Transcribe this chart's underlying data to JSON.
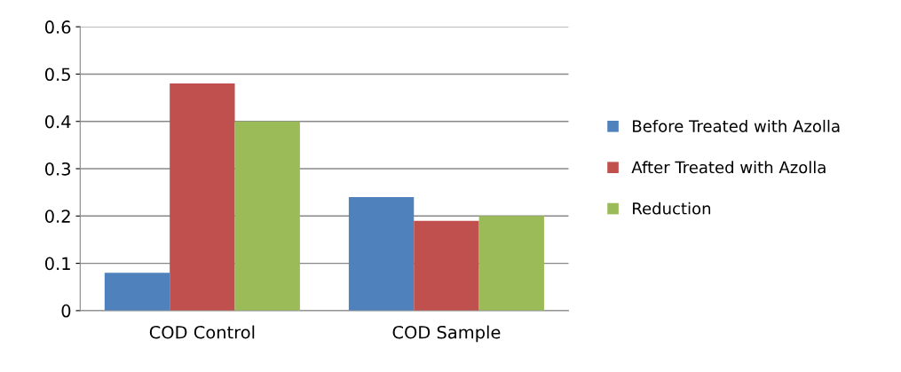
{
  "chart_data": {
    "type": "bar",
    "categories": [
      "COD Control",
      "COD Sample"
    ],
    "series": [
      {
        "name": "Before Treated with Azolla",
        "color": "#4f81bd",
        "values": [
          0.08,
          0.24
        ]
      },
      {
        "name": "After Treated with Azolla",
        "color": "#c0504d",
        "values": [
          0.48,
          0.19
        ]
      },
      {
        "name": "Reduction",
        "color": "#9bbb59",
        "values": [
          0.4,
          0.2
        ]
      }
    ],
    "ylim": [
      0,
      0.6
    ],
    "yticks": [
      0,
      0.1,
      0.2,
      0.3,
      0.4,
      0.5,
      0.6
    ],
    "grid": "y",
    "legend": "right"
  }
}
